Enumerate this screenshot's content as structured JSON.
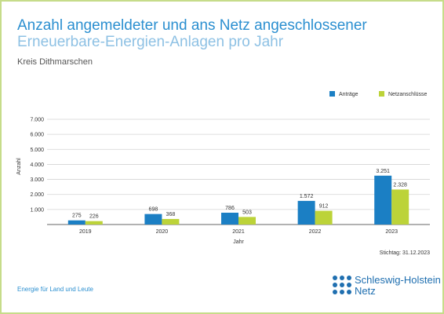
{
  "header": {
    "title_line1": "Anzahl angemeldeter und ans Netz angeschlossener",
    "title_line2": "Erneuerbare-Energien-Anlagen pro Jahr",
    "subtitle": "Kreis Dithmarschen"
  },
  "footer": {
    "tagline": "Energie für Land und Leute",
    "stichtag": "Stichtag: 31.12.2023",
    "logo_line1": "Schleswig-Holstein",
    "logo_line2": "Netz"
  },
  "colors": {
    "accent": "#2b8fd0",
    "series_antraege": "#1b7fc4",
    "series_netzanschluesse": "#bcd339",
    "frame": "#c6dc8a"
  },
  "chart_data": {
    "type": "bar",
    "categories": [
      "2019",
      "2020",
      "2021",
      "2022",
      "2023"
    ],
    "series": [
      {
        "name": "Anträge",
        "values": [
          275,
          698,
          786,
          1572,
          3251
        ],
        "labels": [
          "275",
          "698",
          "786",
          "1.572",
          "3.251"
        ],
        "color": "#1b7fc4"
      },
      {
        "name": "Netzanschlüsse",
        "values": [
          226,
          368,
          503,
          912,
          2328
        ],
        "labels": [
          "226",
          "368",
          "503",
          "912",
          "2.328"
        ],
        "color": "#bcd339"
      }
    ],
    "xlabel": "Jahr",
    "ylabel": "Anzahl",
    "ylim": [
      0,
      7000
    ],
    "yticks": [
      1000,
      2000,
      3000,
      4000,
      5000,
      6000,
      7000
    ],
    "ytick_labels": [
      "1.000",
      "2.000",
      "3.000",
      "4.000",
      "5.000",
      "6.000",
      "7.000"
    ],
    "grid": true,
    "legend_position": "top-right"
  }
}
